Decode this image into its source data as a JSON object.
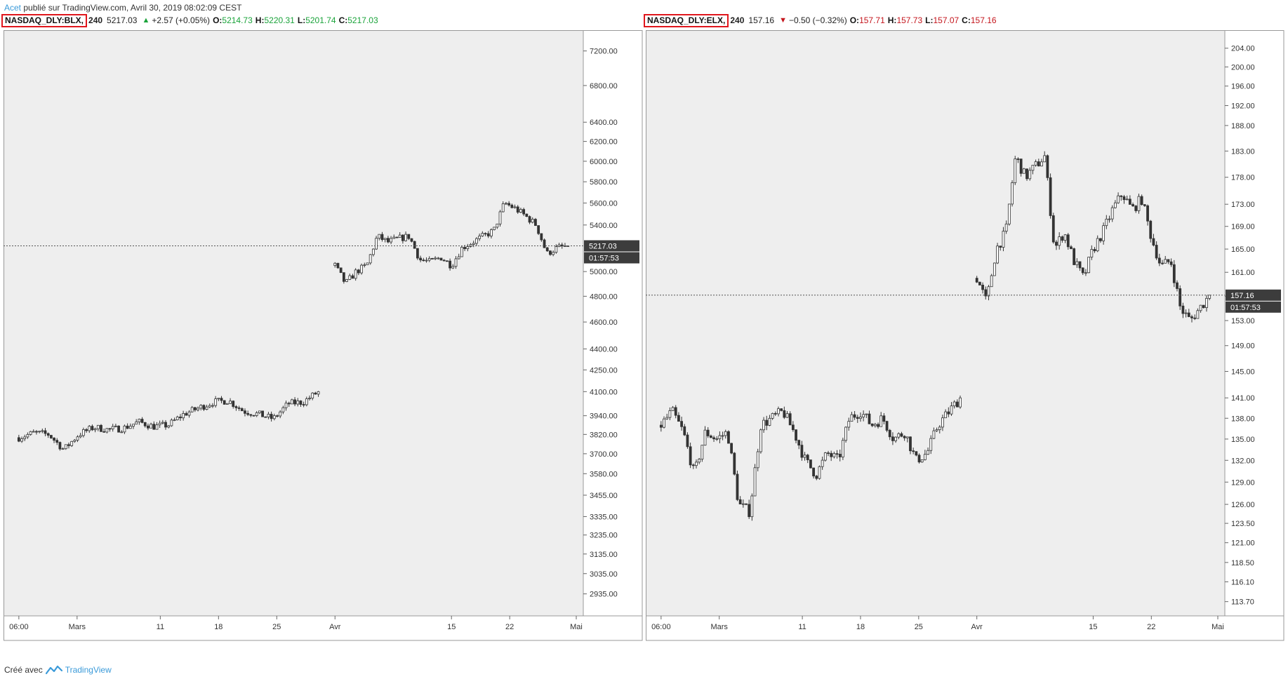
{
  "header": {
    "author": "Acet",
    "text": " publié sur TradingView.com, Avril 30, 2019 08:02:09 CEST"
  },
  "footer": {
    "created_with": "Créé avec",
    "brand": "TradingView"
  },
  "colors": {
    "up": "#1aa33a",
    "down": "#c4151c",
    "pane_bg": "#eeeeee",
    "candle": "#333333",
    "symbol_border": "#e0161c"
  },
  "legends": [
    {
      "symbol": "NASDAQ_DLY:BLX,",
      "timeframe": "240",
      "last": "5217.03",
      "direction": "up",
      "change": "+2.57 (+0.05%)",
      "o_label": "O:",
      "o": "5214.73",
      "h_label": "H:",
      "h": "5220.31",
      "l_label": "L:",
      "l": "5201.74",
      "c_label": "C:",
      "c": "5217.03"
    },
    {
      "symbol": "NASDAQ_DLY:ELX,",
      "timeframe": "240",
      "last": "157.16",
      "direction": "down",
      "change": "−0.50 (−0.32%)",
      "o_label": "O:",
      "o": "157.71",
      "h_label": "H:",
      "h": "157.73",
      "l_label": "L:",
      "l": "157.07",
      "c_label": "C:",
      "c": "157.16"
    }
  ],
  "chart_data": [
    {
      "type": "candlestick",
      "symbol": "NASDAQ_DLY:BLX",
      "y_scale": "log",
      "ylim": [
        2850,
        7400
      ],
      "y_ticks": [
        7200,
        6800,
        6400,
        6200,
        6000,
        5800,
        5600,
        5400,
        5000,
        4800,
        4600,
        4400,
        4250,
        4100,
        3940,
        3820,
        3700,
        3580,
        3455,
        3335,
        3235,
        3135,
        3035,
        2935
      ],
      "y_tick_labels": [
        "7200.00",
        "6800.00",
        "6400.00",
        "6200.00",
        "6000.00",
        "5800.00",
        "5600.00",
        "5400.00",
        "5000.00",
        "4800.00",
        "4600.00",
        "4400.00",
        "4250.00",
        "4100.00",
        "3940.00",
        "3820.00",
        "3700.00",
        "3580.00",
        "3455.00",
        "3335.00",
        "3235.00",
        "3135.00",
        "3035.00",
        "2935.00"
      ],
      "x_range": [
        "2019-02-21",
        "2019-04-30"
      ],
      "x_ticks": [
        {
          "date": "2019-02-22",
          "label": "06:00"
        },
        {
          "date": "2019-03-01",
          "label": "Mars"
        },
        {
          "date": "2019-03-11",
          "label": "11"
        },
        {
          "date": "2019-03-18",
          "label": "18"
        },
        {
          "date": "2019-03-25",
          "label": "25"
        },
        {
          "date": "2019-04-01",
          "label": "Avr"
        },
        {
          "date": "2019-04-15",
          "label": "15"
        },
        {
          "date": "2019-04-22",
          "label": "22"
        },
        {
          "date": "2019-04-30",
          "label": "Mai"
        }
      ],
      "last_price": 5217.03,
      "last_price_label": "5217.03",
      "countdown": "01:57:53",
      "segments": [
        {
          "from": "2019-02-22",
          "to": "2019-03-30",
          "start": 3800,
          "end": 4100,
          "path": [
            3800,
            3830,
            3820,
            3725,
            3820,
            3865,
            3850,
            3860,
            3900,
            3870,
            3880,
            3950,
            3990,
            4030,
            4040,
            3970,
            3950,
            3920,
            4020,
            4030,
            4100
          ]
        },
        {
          "from": "2019-04-01",
          "to": "2019-04-29",
          "start": 5050,
          "end": 5217,
          "path": [
            5050,
            4900,
            5000,
            5050,
            5300,
            5250,
            5280,
            5300,
            5100,
            5080,
            5120,
            5050,
            5200,
            5250,
            5300,
            5350,
            5600,
            5550,
            5480,
            5400,
            5150,
            5200,
            5217
          ]
        }
      ]
    },
    {
      "type": "candlestick",
      "symbol": "NASDAQ_DLY:ELX",
      "y_scale": "log",
      "ylim": [
        112.5,
        207
      ],
      "y_ticks": [
        204,
        200,
        196,
        192,
        188,
        183,
        178,
        173,
        169,
        165,
        161,
        157,
        153,
        149,
        145,
        141,
        138,
        135,
        132,
        129,
        126,
        123.5,
        121,
        118.5,
        116.1,
        113.7
      ],
      "y_tick_labels": [
        "204.00",
        "200.00",
        "196.00",
        "192.00",
        "188.00",
        "183.00",
        "178.00",
        "173.00",
        "169.00",
        "165.00",
        "161.00",
        "157.00",
        "153.00",
        "149.00",
        "145.00",
        "141.00",
        "138.00",
        "135.00",
        "132.00",
        "129.00",
        "126.00",
        "123.50",
        "121.00",
        "118.50",
        "116.10",
        "113.70"
      ],
      "x_range": [
        "2019-02-21",
        "2019-04-30"
      ],
      "x_ticks": [
        {
          "date": "2019-02-22",
          "label": "06:00"
        },
        {
          "date": "2019-03-01",
          "label": "Mars"
        },
        {
          "date": "2019-03-11",
          "label": "11"
        },
        {
          "date": "2019-03-18",
          "label": "18"
        },
        {
          "date": "2019-03-25",
          "label": "25"
        },
        {
          "date": "2019-04-01",
          "label": "Avr"
        },
        {
          "date": "2019-04-15",
          "label": "15"
        },
        {
          "date": "2019-04-22",
          "label": "22"
        },
        {
          "date": "2019-04-30",
          "label": "Mai"
        }
      ],
      "last_price": 157.16,
      "last_price_label": "157.16",
      "countdown": "01:57:53",
      "segments": [
        {
          "from": "2019-02-22",
          "to": "2019-03-30",
          "start": 137,
          "end": 141,
          "path": [
            137,
            139,
            136,
            130,
            136,
            135,
            136,
            126,
            125,
            137,
            138,
            139,
            136,
            132,
            130,
            133,
            132,
            138,
            139,
            137,
            138,
            135,
            136,
            132,
            133,
            137,
            139,
            141
          ]
        },
        {
          "from": "2019-04-01",
          "to": "2019-04-29",
          "start": 160,
          "end": 157.16,
          "path": [
            160,
            156,
            165,
            168,
            182,
            178,
            180,
            182,
            165,
            168,
            163,
            160,
            165,
            168,
            172,
            175,
            172,
            174,
            167,
            162,
            163,
            155,
            153,
            155,
            157.16
          ]
        }
      ]
    }
  ]
}
